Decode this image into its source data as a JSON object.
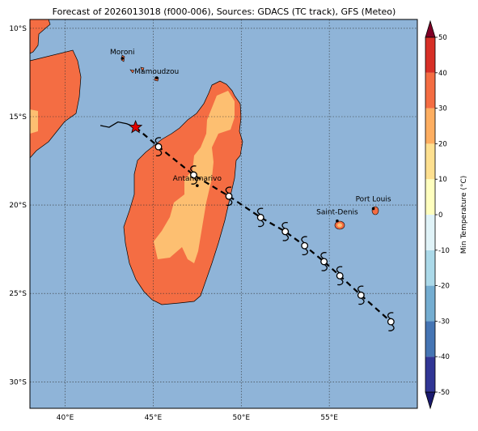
{
  "title": "Forecast of 2026013018 (f000-006), Sources: GDACS (TC track), GFS (Meteo)",
  "map": {
    "lon_range": [
      38,
      60
    ],
    "lat_range": [
      -31.5,
      -9.5
    ],
    "lon_ticks": [
      {
        "value": 40,
        "label": "40°E"
      },
      {
        "value": 45,
        "label": "45°E"
      },
      {
        "value": 50,
        "label": "50°E"
      },
      {
        "value": 55,
        "label": "55°E"
      }
    ],
    "lat_ticks": [
      {
        "value": -10,
        "label": "10°S"
      },
      {
        "value": -15,
        "label": "15°S"
      },
      {
        "value": -20,
        "label": "20°S"
      },
      {
        "value": -25,
        "label": "25°S"
      },
      {
        "value": -30,
        "label": "30°S"
      }
    ],
    "grid": true,
    "ocean_color": "#8fb4d8",
    "colors": {
      "band_10_20": "#fdbf71",
      "band_20_30": "#f46d43",
      "band_0_10": "#fee090"
    },
    "cities": [
      {
        "name": "Moroni",
        "lon": 43.25,
        "lat": -11.7
      },
      {
        "name": "Mamoudzou",
        "lon": 45.2,
        "lat": -12.8
      },
      {
        "name": "Antananarivo",
        "lon": 47.5,
        "lat": -18.9
      },
      {
        "name": "Saint-Denis",
        "lon": 55.45,
        "lat": -20.9
      },
      {
        "name": "Port Louis",
        "lon": 57.5,
        "lat": -20.2
      }
    ],
    "storm_track_past": [
      [
        42.0,
        -15.5
      ],
      [
        42.5,
        -15.6
      ],
      [
        43.0,
        -15.3
      ],
      [
        43.5,
        -15.4
      ],
      [
        44.0,
        -15.6
      ]
    ],
    "storm_current": [
      44.0,
      -15.6
    ],
    "storm_forecast": [
      [
        44.0,
        -15.6
      ],
      [
        45.3,
        -16.7
      ],
      [
        47.3,
        -18.3
      ],
      [
        49.3,
        -19.5
      ],
      [
        51.1,
        -20.7
      ],
      [
        52.5,
        -21.5
      ],
      [
        53.6,
        -22.3
      ],
      [
        54.7,
        -23.2
      ],
      [
        55.6,
        -24.0
      ],
      [
        56.8,
        -25.1
      ],
      [
        58.5,
        -26.6
      ]
    ],
    "storm_symbols": [
      [
        45.3,
        -16.7
      ],
      [
        47.3,
        -18.3
      ],
      [
        49.3,
        -19.5
      ],
      [
        51.1,
        -20.7
      ],
      [
        52.5,
        -21.5
      ],
      [
        53.6,
        -22.3
      ],
      [
        54.7,
        -23.2
      ],
      [
        55.6,
        -24.0
      ],
      [
        56.8,
        -25.1
      ],
      [
        58.5,
        -26.6
      ]
    ]
  },
  "colorbar": {
    "label": "Min Temperature (°C)",
    "levels": [
      -50,
      -40,
      -30,
      -20,
      -10,
      0,
      10,
      20,
      30,
      40,
      50
    ],
    "colors": [
      "#313695",
      "#4575b4",
      "#74add1",
      "#abd9e9",
      "#e0f3f8",
      "#ffffbf",
      "#fee090",
      "#fdae61",
      "#f46d43",
      "#d73027",
      "#a50026"
    ],
    "extend_low_color": "#1a1a6e",
    "extend_high_color": "#7f0026"
  }
}
